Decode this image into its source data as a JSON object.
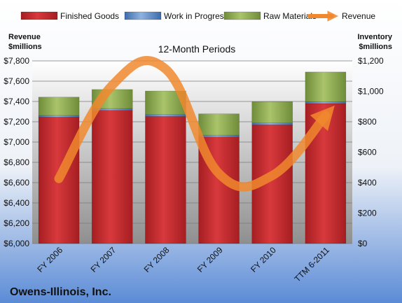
{
  "chart_data": {
    "type": "bar",
    "title": "12-Month Periods",
    "company": "Owens-Illinois, Inc.",
    "left_axis_label": [
      "Revenue",
      "$millions"
    ],
    "right_axis_label": [
      "Inventory",
      "$millions"
    ],
    "categories": [
      "FY 2006",
      "FY 2007",
      "FY 2008",
      "FY 2009",
      "FY 2010",
      "TTM 6-2011"
    ],
    "stacked": true,
    "series": [
      {
        "name": "Finished Goods",
        "axis": "right",
        "color": "#c0282b",
        "values": [
          830,
          875,
          835,
          700,
          780,
          920
        ]
      },
      {
        "name": "Work in Progress",
        "axis": "right",
        "color": "#4f81bd",
        "values": [
          12,
          12,
          12,
          12,
          12,
          12
        ]
      },
      {
        "name": "Raw Materials",
        "axis": "right",
        "color": "#8aa84e",
        "values": [
          120,
          125,
          155,
          140,
          140,
          195
        ]
      },
      {
        "name": "Revenue",
        "axis": "left",
        "type": "line",
        "color": "#f0882e",
        "values": [
          6640,
          7560,
          7720,
          6690,
          6670,
          7260
        ]
      }
    ],
    "left_axis": {
      "min": 6000,
      "max": 7800,
      "step": 200,
      "ticks": [
        "$6,000",
        "$6,200",
        "$6,400",
        "$6,600",
        "$6,800",
        "$7,000",
        "$7,200",
        "$7,400",
        "$7,600",
        "$7,800"
      ]
    },
    "right_axis": {
      "min": 0,
      "max": 1200,
      "step": 200,
      "ticks": [
        "$0",
        "$200",
        "$400",
        "$600",
        "$800",
        "$1,000",
        "$1,200"
      ]
    },
    "grid": true,
    "legend": "top"
  }
}
